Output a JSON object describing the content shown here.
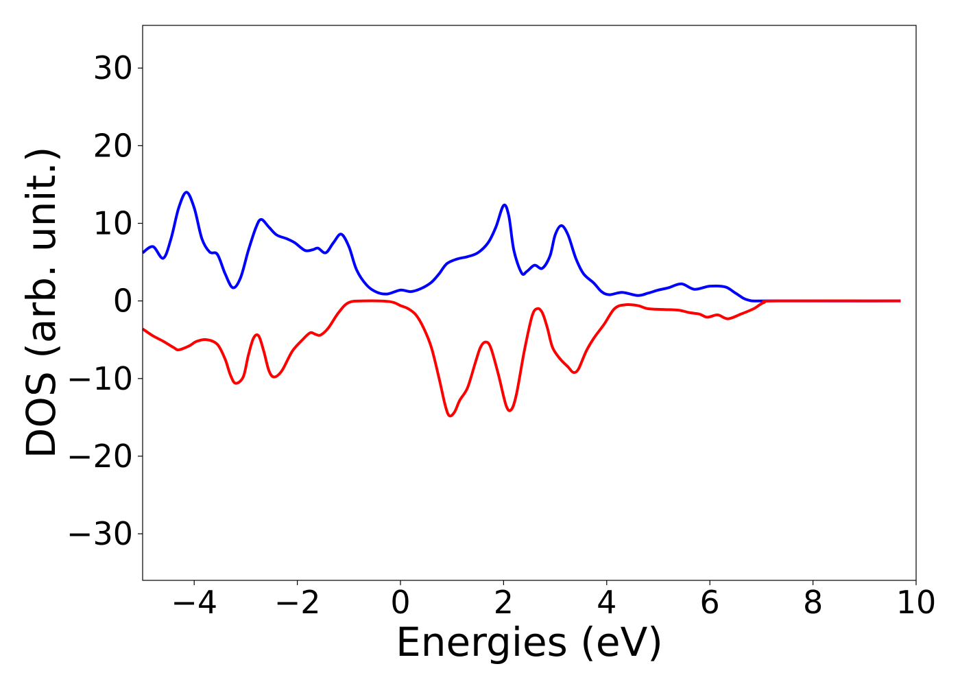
{
  "chart_data": {
    "type": "line",
    "title": "",
    "xlabel": "Energies (eV)",
    "ylabel": "DOS (arb. unit.)",
    "xlim": [
      -5,
      10
    ],
    "ylim": [
      -36,
      35.5
    ],
    "grid": false,
    "legend": "none",
    "xticks": [
      {
        "value": -4,
        "label": "−4"
      },
      {
        "value": -2,
        "label": "−2"
      },
      {
        "value": 0,
        "label": "0"
      },
      {
        "value": 2,
        "label": "2"
      },
      {
        "value": 4,
        "label": "4"
      },
      {
        "value": 6,
        "label": "6"
      },
      {
        "value": 8,
        "label": "8"
      },
      {
        "value": 10,
        "label": "10"
      }
    ],
    "yticks": [
      {
        "value": 30,
        "label": "30"
      },
      {
        "value": 20,
        "label": "20"
      },
      {
        "value": 10,
        "label": "10"
      },
      {
        "value": 0,
        "label": "0"
      },
      {
        "value": -10,
        "label": "−10"
      },
      {
        "value": -20,
        "label": "−20"
      },
      {
        "value": -30,
        "label": "−30"
      }
    ],
    "series": [
      {
        "color": "#0000ff",
        "points": [
          [
            -5.0,
            6.2
          ],
          [
            -4.8,
            7.0
          ],
          [
            -4.6,
            5.5
          ],
          [
            -4.45,
            8.0
          ],
          [
            -4.3,
            12.0
          ],
          [
            -4.15,
            14.0
          ],
          [
            -4.0,
            12.0
          ],
          [
            -3.85,
            8.0
          ],
          [
            -3.7,
            6.3
          ],
          [
            -3.55,
            6.0
          ],
          [
            -3.4,
            3.5
          ],
          [
            -3.25,
            1.7
          ],
          [
            -3.1,
            3.0
          ],
          [
            -2.95,
            6.5
          ],
          [
            -2.8,
            9.5
          ],
          [
            -2.7,
            10.5
          ],
          [
            -2.55,
            9.5
          ],
          [
            -2.4,
            8.5
          ],
          [
            -2.2,
            8.0
          ],
          [
            -2.05,
            7.5
          ],
          [
            -1.85,
            6.5
          ],
          [
            -1.7,
            6.6
          ],
          [
            -1.6,
            6.8
          ],
          [
            -1.45,
            6.2
          ],
          [
            -1.3,
            7.5
          ],
          [
            -1.15,
            8.6
          ],
          [
            -1.0,
            7.0
          ],
          [
            -0.85,
            4.0
          ],
          [
            -0.65,
            2.0
          ],
          [
            -0.45,
            1.1
          ],
          [
            -0.25,
            0.9
          ],
          [
            0.0,
            1.4
          ],
          [
            0.2,
            1.2
          ],
          [
            0.4,
            1.6
          ],
          [
            0.6,
            2.4
          ],
          [
            0.75,
            3.5
          ],
          [
            0.9,
            4.8
          ],
          [
            1.1,
            5.4
          ],
          [
            1.3,
            5.7
          ],
          [
            1.5,
            6.2
          ],
          [
            1.7,
            7.5
          ],
          [
            1.85,
            9.5
          ],
          [
            2.0,
            12.3
          ],
          [
            2.1,
            11.0
          ],
          [
            2.2,
            6.5
          ],
          [
            2.35,
            3.6
          ],
          [
            2.45,
            3.8
          ],
          [
            2.6,
            4.6
          ],
          [
            2.75,
            4.2
          ],
          [
            2.9,
            5.8
          ],
          [
            3.0,
            8.5
          ],
          [
            3.12,
            9.7
          ],
          [
            3.25,
            8.5
          ],
          [
            3.4,
            5.5
          ],
          [
            3.55,
            3.5
          ],
          [
            3.75,
            2.3
          ],
          [
            3.9,
            1.2
          ],
          [
            4.05,
            0.8
          ],
          [
            4.3,
            1.1
          ],
          [
            4.6,
            0.7
          ],
          [
            4.8,
            1.0
          ],
          [
            5.0,
            1.4
          ],
          [
            5.2,
            1.7
          ],
          [
            5.45,
            2.2
          ],
          [
            5.7,
            1.5
          ],
          [
            6.0,
            1.9
          ],
          [
            6.3,
            1.8
          ],
          [
            6.5,
            1.0
          ],
          [
            6.75,
            0.1
          ],
          [
            7.2,
            0.0
          ],
          [
            9.7,
            0.0
          ]
        ]
      },
      {
        "color": "#ff0000",
        "points": [
          [
            -5.0,
            -3.6
          ],
          [
            -4.8,
            -4.5
          ],
          [
            -4.6,
            -5.2
          ],
          [
            -4.4,
            -6.0
          ],
          [
            -4.3,
            -6.3
          ],
          [
            -4.1,
            -5.8
          ],
          [
            -3.95,
            -5.2
          ],
          [
            -3.75,
            -5.0
          ],
          [
            -3.55,
            -5.6
          ],
          [
            -3.4,
            -7.5
          ],
          [
            -3.3,
            -9.5
          ],
          [
            -3.2,
            -10.6
          ],
          [
            -3.05,
            -9.8
          ],
          [
            -2.95,
            -7.0
          ],
          [
            -2.85,
            -4.8
          ],
          [
            -2.75,
            -4.5
          ],
          [
            -2.65,
            -6.5
          ],
          [
            -2.55,
            -9.0
          ],
          [
            -2.45,
            -9.8
          ],
          [
            -2.3,
            -9.0
          ],
          [
            -2.1,
            -6.5
          ],
          [
            -1.9,
            -5.0
          ],
          [
            -1.75,
            -4.1
          ],
          [
            -1.65,
            -4.3
          ],
          [
            -1.55,
            -4.4
          ],
          [
            -1.4,
            -3.5
          ],
          [
            -1.2,
            -1.5
          ],
          [
            -1.0,
            -0.2
          ],
          [
            -0.7,
            0.0
          ],
          [
            -0.2,
            -0.1
          ],
          [
            0.0,
            -0.6
          ],
          [
            0.15,
            -1.0
          ],
          [
            0.3,
            -1.8
          ],
          [
            0.45,
            -3.5
          ],
          [
            0.6,
            -6.0
          ],
          [
            0.75,
            -10.0
          ],
          [
            0.87,
            -13.5
          ],
          [
            0.95,
            -14.8
          ],
          [
            1.05,
            -14.3
          ],
          [
            1.15,
            -12.8
          ],
          [
            1.3,
            -11.2
          ],
          [
            1.45,
            -8.0
          ],
          [
            1.55,
            -6.0
          ],
          [
            1.65,
            -5.3
          ],
          [
            1.75,
            -6.0
          ],
          [
            1.9,
            -9.5
          ],
          [
            2.05,
            -13.5
          ],
          [
            2.15,
            -14.0
          ],
          [
            2.25,
            -12.0
          ],
          [
            2.4,
            -6.5
          ],
          [
            2.55,
            -2.0
          ],
          [
            2.65,
            -1.0
          ],
          [
            2.75,
            -1.5
          ],
          [
            2.85,
            -3.5
          ],
          [
            2.95,
            -6.0
          ],
          [
            3.1,
            -7.5
          ],
          [
            3.25,
            -8.5
          ],
          [
            3.35,
            -9.2
          ],
          [
            3.45,
            -8.8
          ],
          [
            3.6,
            -6.5
          ],
          [
            3.75,
            -4.8
          ],
          [
            3.95,
            -3.0
          ],
          [
            4.15,
            -1.0
          ],
          [
            4.35,
            -0.5
          ],
          [
            4.6,
            -0.6
          ],
          [
            4.8,
            -1.0
          ],
          [
            5.1,
            -1.1
          ],
          [
            5.4,
            -1.2
          ],
          [
            5.6,
            -1.5
          ],
          [
            5.8,
            -1.7
          ],
          [
            5.95,
            -2.1
          ],
          [
            6.15,
            -1.8
          ],
          [
            6.35,
            -2.3
          ],
          [
            6.6,
            -1.7
          ],
          [
            6.85,
            -1.0
          ],
          [
            7.05,
            -0.2
          ],
          [
            7.3,
            0.0
          ],
          [
            9.7,
            0.0
          ]
        ]
      }
    ]
  }
}
